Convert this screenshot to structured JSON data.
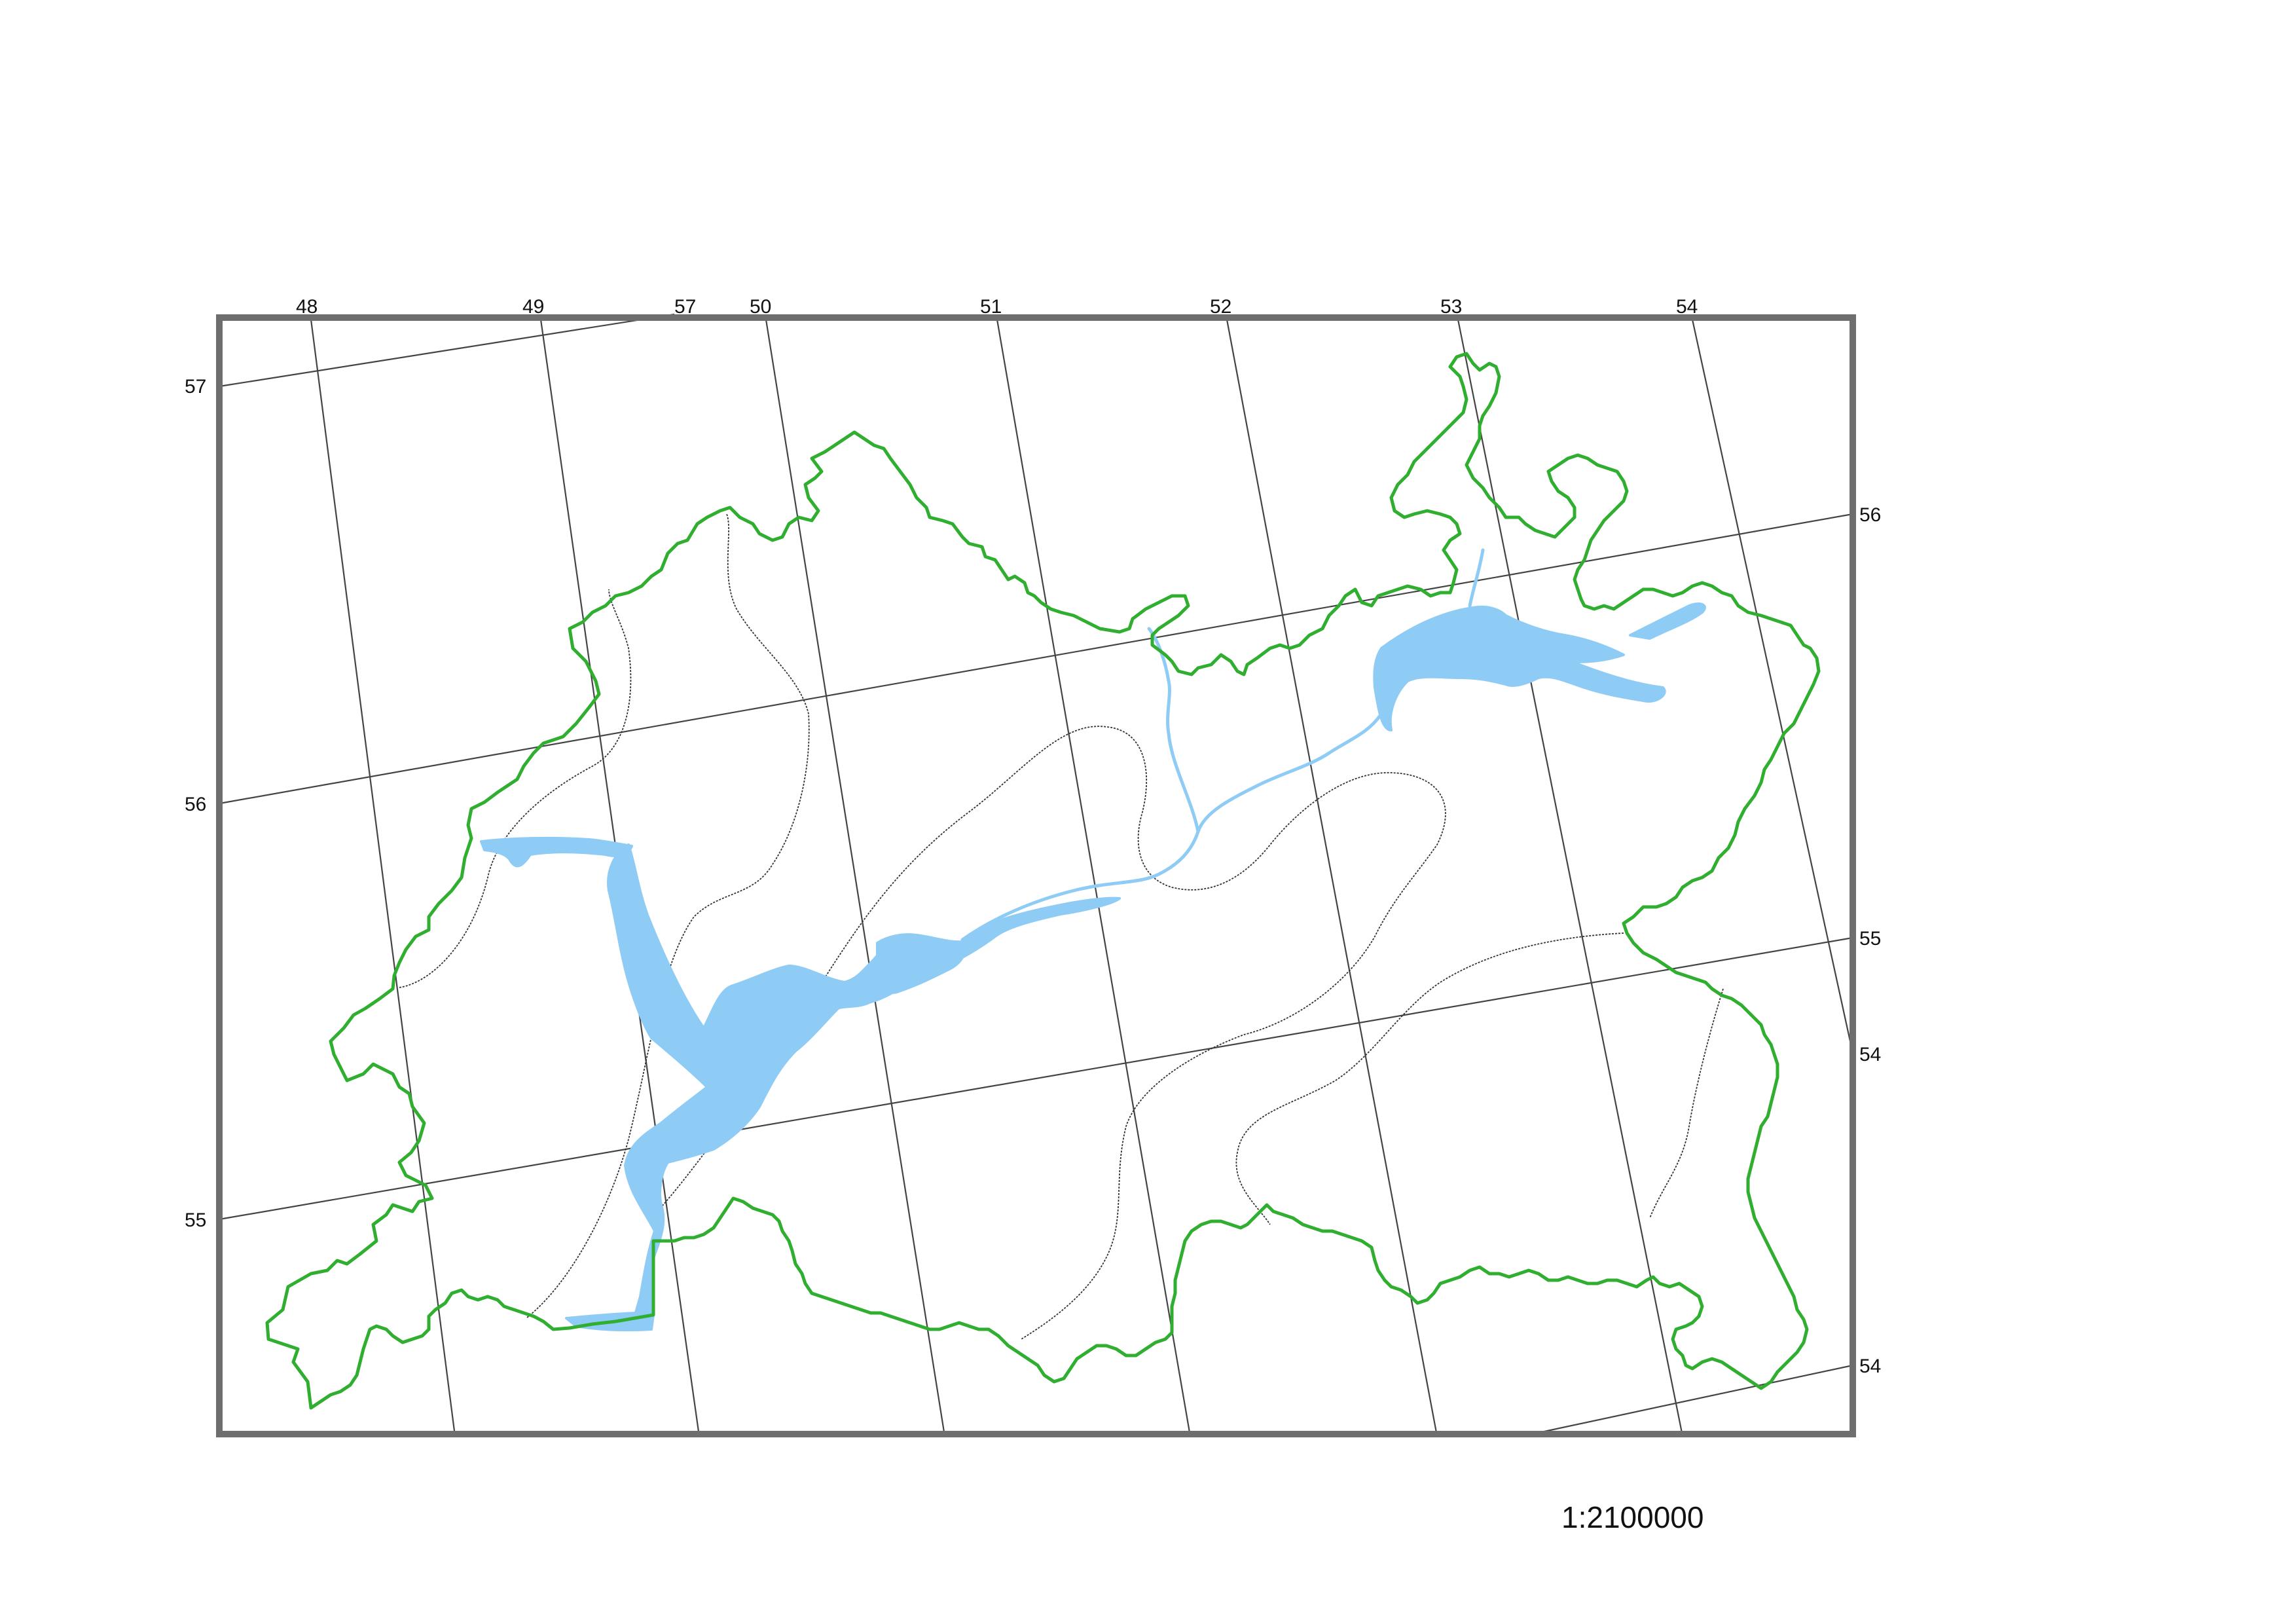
{
  "map": {
    "scale": "1:2100000",
    "top_longitude_labels": [
      "48",
      "49",
      "57",
      "50",
      "51",
      "52",
      "53",
      "54"
    ],
    "left_latitude_labels": [
      "57",
      "56",
      "55"
    ],
    "right_latitude_labels": [
      "56",
      "55",
      "54",
      "54"
    ],
    "colors": {
      "frame": "#6e6e6e",
      "boundary": "#2fae2f",
      "water": "#8ecbf5",
      "graticule": "#444444"
    }
  }
}
